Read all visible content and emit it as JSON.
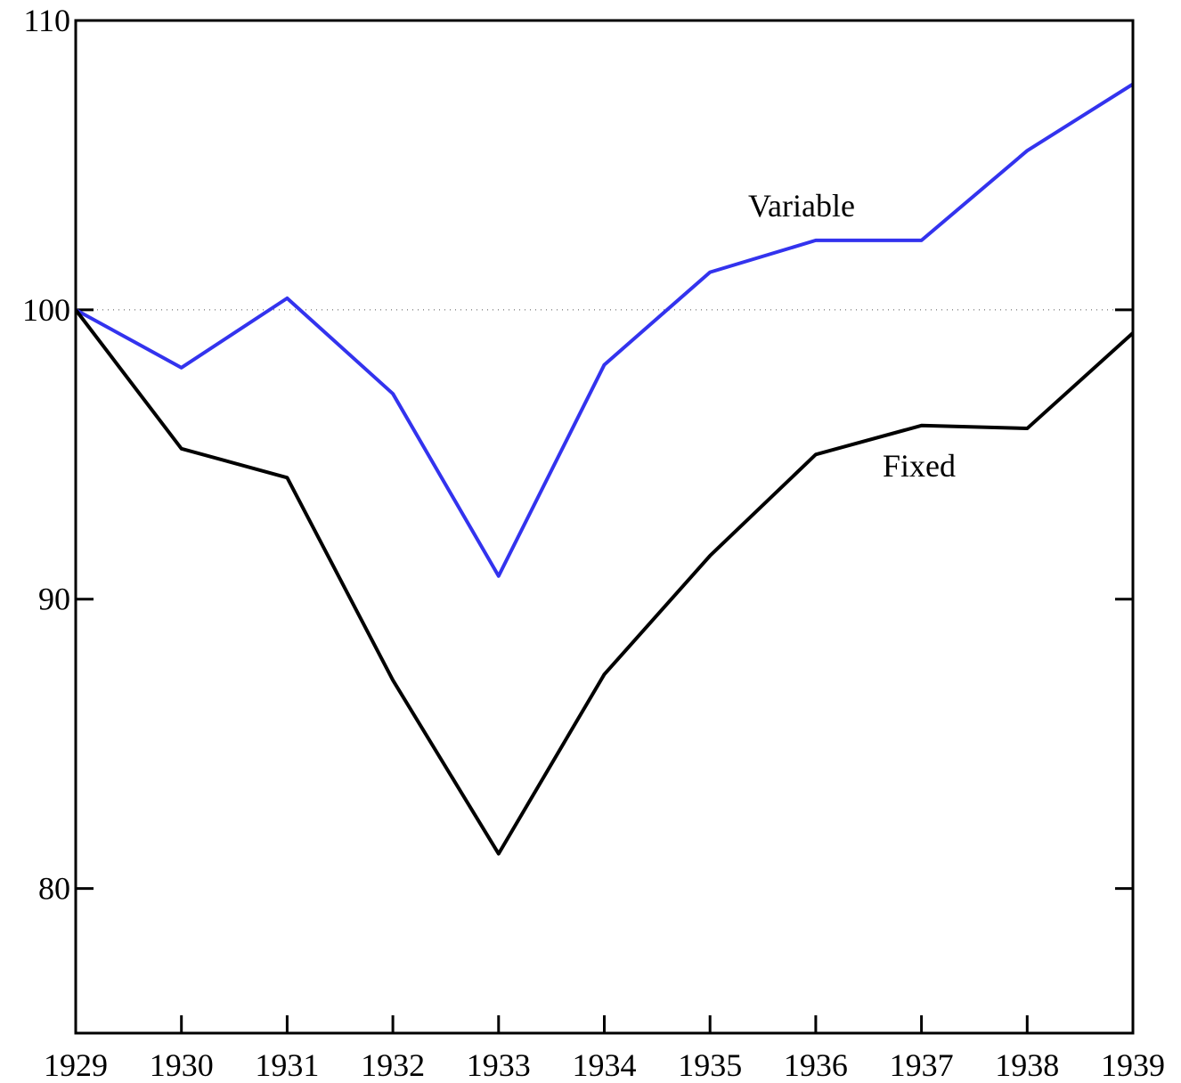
{
  "chart_data": {
    "type": "line",
    "x": [
      1929,
      1930,
      1931,
      1932,
      1933,
      1934,
      1935,
      1936,
      1937,
      1938,
      1939
    ],
    "series": [
      {
        "name": "Variable",
        "color": "#3333ee",
        "values": [
          100,
          98.0,
          100.4,
          97.1,
          90.8,
          98.1,
          101.3,
          102.4,
          102.4,
          105.5,
          107.8
        ]
      },
      {
        "name": "Fixed",
        "color": "#000000",
        "values": [
          100,
          95.2,
          94.2,
          87.2,
          81.2,
          87.4,
          91.5,
          95.0,
          96.0,
          95.9,
          99.2
        ]
      }
    ],
    "xlim": [
      1929,
      1939
    ],
    "xticks": [
      1929,
      1930,
      1931,
      1932,
      1933,
      1934,
      1935,
      1936,
      1937,
      1938,
      1939
    ],
    "ylim": [
      75,
      110
    ],
    "yticks": [
      80,
      90,
      100,
      110
    ],
    "reference_line": 100
  }
}
